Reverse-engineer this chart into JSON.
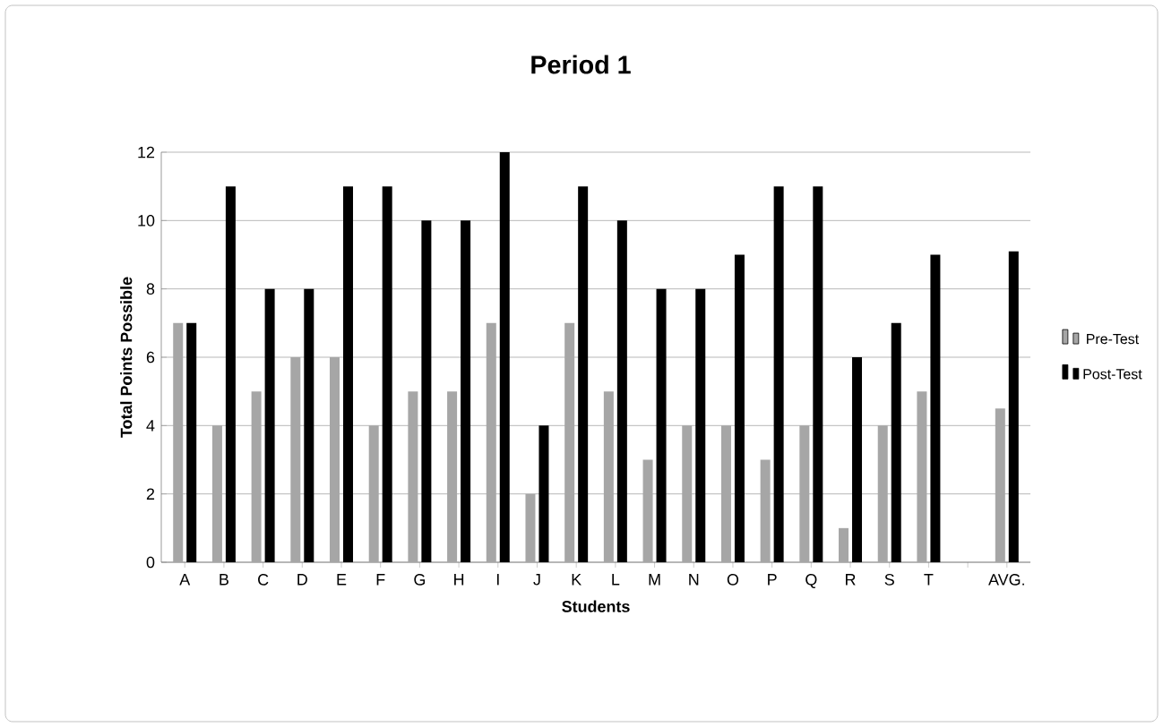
{
  "chart_data": {
    "type": "bar",
    "title": "Period 1",
    "xlabel": "Students",
    "ylabel": "Total Points Possible",
    "categories": [
      "A",
      "B",
      "C",
      "D",
      "E",
      "F",
      "G",
      "H",
      "I",
      "J",
      "K",
      "L",
      "M",
      "N",
      "O",
      "P",
      "Q",
      "R",
      "S",
      "T",
      null,
      "AVG."
    ],
    "series": [
      {
        "name": "Pre-Test",
        "color": "#a6a6a6",
        "values": [
          7,
          4,
          5,
          6,
          6,
          4,
          5,
          5,
          7,
          2,
          7,
          5,
          3,
          4,
          4,
          3,
          4,
          1,
          4,
          5,
          null,
          4.5
        ]
      },
      {
        "name": "Post-Test",
        "color": "#000000",
        "values": [
          7,
          11,
          8,
          8,
          11,
          11,
          10,
          10,
          12,
          4,
          11,
          10,
          8,
          8,
          9,
          11,
          11,
          6,
          7,
          9,
          null,
          9.1
        ]
      }
    ],
    "ylim": [
      0,
      12
    ],
    "yticks": [
      0,
      2,
      4,
      6,
      8,
      10,
      12
    ],
    "grid": "y",
    "legend": "right"
  }
}
